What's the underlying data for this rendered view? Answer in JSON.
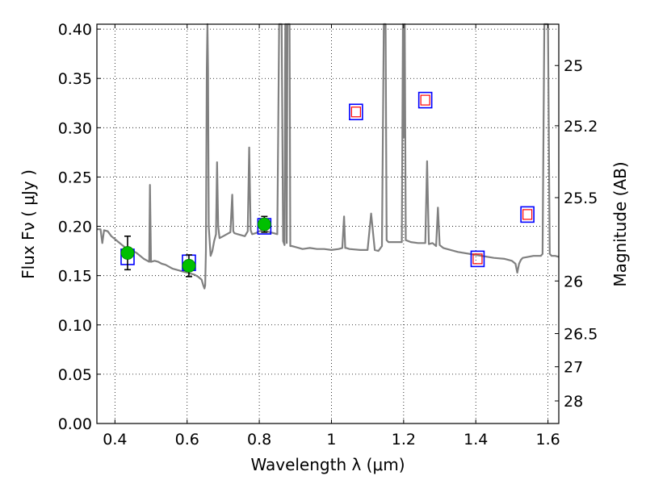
{
  "chart_data": {
    "type": "scatter",
    "xlabel": "Wavelength  λ (μm)",
    "ylabel": "Flux  Fν  ( μJy )",
    "y2label": "Magnitude (AB)",
    "xlim": [
      0.35,
      1.63
    ],
    "ylim": [
      0.0,
      0.405
    ],
    "grid": true,
    "xticks": [
      {
        "v": 0.4,
        "label": "0.4"
      },
      {
        "v": 0.6,
        "label": "0.6"
      },
      {
        "v": 0.8,
        "label": "0.8"
      },
      {
        "v": 1.0,
        "label": "1"
      },
      {
        "v": 1.2,
        "label": "1.2"
      },
      {
        "v": 1.4,
        "label": "1.4"
      },
      {
        "v": 1.6,
        "label": "1.6"
      }
    ],
    "yticks": [
      {
        "v": 0.0,
        "label": "0.00"
      },
      {
        "v": 0.05,
        "label": "0.05"
      },
      {
        "v": 0.1,
        "label": "0.10"
      },
      {
        "v": 0.15,
        "label": "0.15"
      },
      {
        "v": 0.2,
        "label": "0.20"
      },
      {
        "v": 0.25,
        "label": "0.25"
      },
      {
        "v": 0.3,
        "label": "0.30"
      },
      {
        "v": 0.35,
        "label": "0.35"
      },
      {
        "v": 0.4,
        "label": "0.40"
      }
    ],
    "y2ticks": [
      {
        "mag": 25,
        "label": "25"
      },
      {
        "mag": 25.2,
        "label": "25.2"
      },
      {
        "mag": 25.5,
        "label": "25.5"
      },
      {
        "mag": 26,
        "label": "26"
      },
      {
        "mag": 26.5,
        "label": "26.5"
      },
      {
        "mag": 27,
        "label": "27"
      },
      {
        "mag": 28,
        "label": "28"
      }
    ],
    "series": [
      {
        "kind": "model_spectrum",
        "color": "#808080",
        "x": [
          0.35,
          0.36,
          0.365,
          0.37,
          0.38,
          0.39,
          0.4,
          0.41,
          0.42,
          0.43,
          0.44,
          0.45,
          0.46,
          0.47,
          0.48,
          0.49,
          0.495,
          0.497,
          0.5,
          0.51,
          0.52,
          0.53,
          0.54,
          0.55,
          0.56,
          0.57,
          0.58,
          0.59,
          0.6,
          0.61,
          0.62,
          0.63,
          0.64,
          0.645,
          0.648,
          0.65,
          0.652,
          0.6545,
          0.6563,
          0.658,
          0.66,
          0.665,
          0.67,
          0.675,
          0.68,
          0.683,
          0.686,
          0.69,
          0.7,
          0.71,
          0.72,
          0.725,
          0.728,
          0.731,
          0.74,
          0.75,
          0.76,
          0.768,
          0.772,
          0.776,
          0.78,
          0.79,
          0.8,
          0.81,
          0.82,
          0.83,
          0.84,
          0.85,
          0.855,
          0.858,
          0.862,
          0.866,
          0.87,
          0.872,
          0.874,
          0.876,
          0.878,
          0.88,
          0.882,
          0.884,
          0.886,
          0.888,
          0.89,
          0.9,
          0.92,
          0.94,
          0.96,
          0.98,
          1.0,
          1.02,
          1.03,
          1.035,
          1.038,
          1.041,
          1.05,
          1.08,
          1.1,
          1.11,
          1.12,
          1.13,
          1.14,
          1.145,
          1.148,
          1.15,
          1.153,
          1.158,
          1.16,
          1.18,
          1.195,
          1.198,
          1.2,
          1.203,
          1.206,
          1.22,
          1.24,
          1.25,
          1.26,
          1.265,
          1.27,
          1.28,
          1.29,
          1.295,
          1.3,
          1.31,
          1.35,
          1.4,
          1.45,
          1.48,
          1.5,
          1.51,
          1.515,
          1.52,
          1.525,
          1.53,
          1.56,
          1.58,
          1.585,
          1.59,
          1.595,
          1.6,
          1.605,
          1.61,
          1.62,
          1.63
        ],
        "y": [
          0.197,
          0.197,
          0.183,
          0.196,
          0.195,
          0.19,
          0.187,
          0.184,
          0.181,
          0.178,
          0.176,
          0.175,
          0.173,
          0.17,
          0.167,
          0.165,
          0.164,
          0.242,
          0.164,
          0.165,
          0.164,
          0.162,
          0.161,
          0.159,
          0.157,
          0.156,
          0.155,
          0.154,
          0.153,
          0.152,
          0.151,
          0.149,
          0.146,
          0.14,
          0.137,
          0.14,
          0.175,
          0.36,
          0.405,
          0.36,
          0.2,
          0.17,
          0.175,
          0.185,
          0.192,
          0.265,
          0.2,
          0.188,
          0.19,
          0.192,
          0.194,
          0.232,
          0.195,
          0.193,
          0.192,
          0.191,
          0.19,
          0.195,
          0.28,
          0.196,
          0.192,
          0.193,
          0.195,
          0.196,
          0.195,
          0.194,
          0.193,
          0.192,
          0.405,
          0.405,
          0.405,
          0.185,
          0.181,
          0.405,
          0.405,
          0.183,
          0.405,
          0.405,
          0.405,
          0.405,
          0.18,
          0.18,
          0.18,
          0.179,
          0.177,
          0.178,
          0.177,
          0.177,
          0.176,
          0.177,
          0.178,
          0.21,
          0.178,
          0.178,
          0.177,
          0.176,
          0.176,
          0.213,
          0.176,
          0.175,
          0.18,
          0.405,
          0.405,
          0.405,
          0.186,
          0.184,
          0.184,
          0.184,
          0.184,
          0.405,
          0.29,
          0.405,
          0.186,
          0.184,
          0.183,
          0.183,
          0.183,
          0.266,
          0.182,
          0.183,
          0.18,
          0.219,
          0.181,
          0.178,
          0.174,
          0.171,
          0.168,
          0.167,
          0.165,
          0.162,
          0.153,
          0.162,
          0.166,
          0.168,
          0.17,
          0.17,
          0.172,
          0.405,
          0.405,
          0.405,
          0.172,
          0.17,
          0.17,
          0.169
        ]
      },
      {
        "kind": "observed",
        "marker": "filled-circle",
        "color": "#00c000",
        "points": [
          {
            "x": 0.435,
            "y": 0.173,
            "yerr": 0.017
          },
          {
            "x": 0.605,
            "y": 0.16,
            "yerr": 0.011
          },
          {
            "x": 0.814,
            "y": 0.202,
            "yerr": 0.008
          }
        ]
      },
      {
        "kind": "model_photometry",
        "marker": "open-square",
        "color": "#0000ff",
        "points": [
          {
            "x": 0.435,
            "y": 0.169
          },
          {
            "x": 0.605,
            "y": 0.163
          },
          {
            "x": 0.814,
            "y": 0.2
          },
          {
            "x": 1.068,
            "y": 0.316
          },
          {
            "x": 1.26,
            "y": 0.328
          },
          {
            "x": 1.405,
            "y": 0.167
          },
          {
            "x": 1.543,
            "y": 0.212
          }
        ]
      },
      {
        "kind": "predicted",
        "marker": "small-open-square",
        "color": "#ff0000",
        "points": [
          {
            "x": 1.068,
            "y": 0.316
          },
          {
            "x": 1.26,
            "y": 0.328
          },
          {
            "x": 1.405,
            "y": 0.167
          },
          {
            "x": 1.543,
            "y": 0.212
          }
        ]
      }
    ]
  }
}
